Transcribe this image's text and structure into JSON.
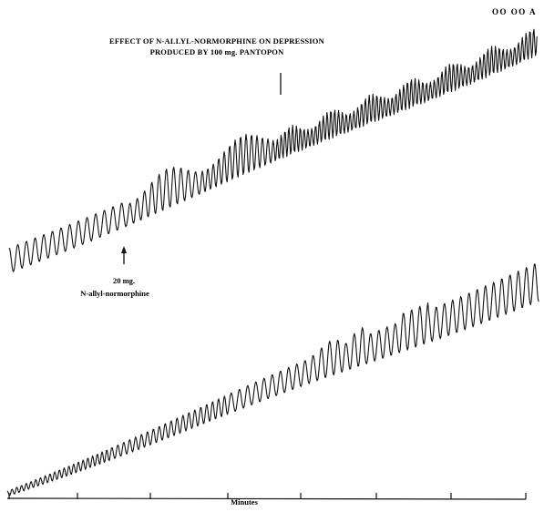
{
  "figure": {
    "corner_tag": "OO OO A",
    "title_line1": "EFFECT OF N-ALLYL-NORMORPHINE ON DEPRESSION",
    "title_line2": "PRODUCED BY 100 mg. PANTOPON",
    "dose_annotation": {
      "line1": "20 mg.",
      "line2": "N-allyl-normorphine"
    },
    "axis_label": "Minutes"
  }
}
